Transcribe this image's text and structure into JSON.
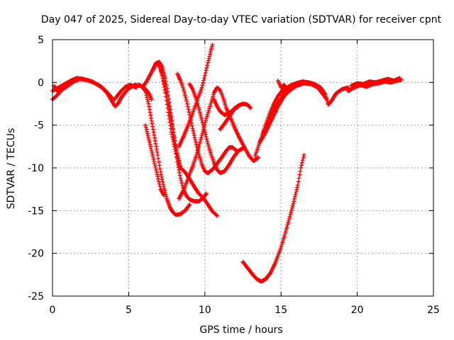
{
  "chart_data": {
    "type": "scatter",
    "title": "Day 047 of 2025, Sidereal Day-to-day VTEC variation (SDTVAR) for receiver cpnt",
    "xlabel": "GPS time / hours",
    "ylabel": "SDTVAR / TECUs",
    "xlim": [
      0,
      25
    ],
    "ylim": [
      -25,
      5
    ],
    "xticks": [
      "0",
      "5",
      "10",
      "15",
      "20",
      "25"
    ],
    "yticks": [
      "5",
      "0",
      "-5",
      "-10",
      "-15",
      "-20",
      "-25"
    ],
    "grid": true,
    "marker": "+",
    "color": "#ff0000",
    "series": [
      {
        "points": [
          [
            0,
            -2.0
          ],
          [
            0.3,
            -1.5
          ],
          [
            0.6,
            -0.9
          ],
          [
            1.0,
            -0.4
          ],
          [
            1.4,
            0.1
          ],
          [
            1.8,
            0.4
          ],
          [
            2.2,
            0.3
          ],
          [
            2.6,
            0.1
          ],
          [
            3.0,
            -0.3
          ],
          [
            3.3,
            -0.7
          ],
          [
            3.6,
            -1.3
          ],
          [
            3.9,
            -2.2
          ],
          [
            4.1,
            -2.8
          ],
          [
            4.3,
            -2.5
          ],
          [
            4.5,
            -1.8
          ],
          [
            4.8,
            -1.1
          ],
          [
            5.1,
            -0.6
          ],
          [
            5.4,
            -0.3
          ],
          [
            5.8,
            -0.4
          ]
        ]
      },
      {
        "points": [
          [
            0,
            -1.0
          ],
          [
            0.4,
            -0.6
          ],
          [
            0.8,
            -0.2
          ],
          [
            1.2,
            0.2
          ],
          [
            1.6,
            0.5
          ],
          [
            2.0,
            0.4
          ],
          [
            2.4,
            0.2
          ],
          [
            2.8,
            -0.1
          ],
          [
            3.2,
            -0.5
          ],
          [
            3.5,
            -1.0
          ],
          [
            3.8,
            -1.6
          ],
          [
            4.0,
            -2.1
          ],
          [
            4.2,
            -1.7
          ],
          [
            4.5,
            -1.0
          ],
          [
            4.8,
            -0.5
          ],
          [
            5.1,
            -0.3
          ],
          [
            5.5,
            -0.6
          ]
        ]
      },
      {
        "points": [
          [
            0.1,
            -0.4
          ],
          [
            0.3,
            -1.0
          ],
          [
            0.5,
            -0.7
          ],
          [
            0.8,
            -0.5
          ]
        ]
      },
      {
        "points": [
          [
            5.4,
            -0.5
          ],
          [
            5.7,
            -0.3
          ],
          [
            6.0,
            -0.6
          ],
          [
            6.3,
            -1.2
          ],
          [
            6.5,
            -2.0
          ]
        ]
      },
      {
        "points": [
          [
            6.1,
            -5.0
          ],
          [
            6.3,
            -6.5
          ],
          [
            6.5,
            -8.0
          ],
          [
            6.7,
            -9.5
          ],
          [
            6.9,
            -11.0
          ],
          [
            7.1,
            -12.5
          ],
          [
            7.3,
            -13.2
          ]
        ]
      },
      {
        "points": [
          [
            5.9,
            -0.6
          ],
          [
            6.1,
            -1.0
          ],
          [
            6.3,
            -2.5
          ],
          [
            6.5,
            -4.5
          ],
          [
            6.7,
            -6.5
          ],
          [
            6.9,
            -8.5
          ],
          [
            7.1,
            -10.5
          ],
          [
            7.3,
            -12.2
          ],
          [
            7.5,
            -13.6
          ],
          [
            7.7,
            -14.6
          ],
          [
            7.9,
            -15.2
          ],
          [
            8.1,
            -15.5
          ],
          [
            8.4,
            -15.4
          ],
          [
            8.7,
            -15.0
          ],
          [
            9.0,
            -14.3
          ]
        ]
      },
      {
        "points": [
          [
            5.9,
            -0.6
          ],
          [
            6.2,
            0.2
          ],
          [
            6.5,
            1.2
          ],
          [
            6.8,
            2.2
          ],
          [
            7.0,
            2.4
          ],
          [
            7.2,
            1.8
          ],
          [
            7.4,
            0.5
          ],
          [
            7.6,
            -1.5
          ],
          [
            7.8,
            -4.0
          ],
          [
            8.0,
            -6.8
          ],
          [
            8.2,
            -9.3
          ],
          [
            8.4,
            -11.2
          ],
          [
            8.6,
            -12.6
          ],
          [
            8.8,
            -13.3
          ],
          [
            9.0,
            -13.7
          ],
          [
            9.3,
            -13.9
          ],
          [
            9.6,
            -13.9
          ],
          [
            9.9,
            -13.5
          ],
          [
            10.1,
            -13.0
          ]
        ]
      },
      {
        "points": [
          [
            6.6,
            1.5
          ],
          [
            6.8,
            2.3
          ],
          [
            7.0,
            2.1
          ],
          [
            7.2,
            0.8
          ],
          [
            7.4,
            -1.2
          ],
          [
            7.6,
            -3.5
          ],
          [
            7.8,
            -5.8
          ],
          [
            8.0,
            -7.5
          ],
          [
            8.2,
            -9.0
          ],
          [
            8.4,
            -10.0
          ],
          [
            8.7,
            -10.5
          ],
          [
            9.0,
            -11.3
          ],
          [
            9.3,
            -12.2
          ],
          [
            9.6,
            -13.0
          ],
          [
            9.9,
            -13.5
          ],
          [
            10.2,
            -14.3
          ],
          [
            10.5,
            -15.1
          ],
          [
            10.8,
            -15.6
          ]
        ]
      },
      {
        "points": [
          [
            7.0,
            2.0
          ],
          [
            7.2,
            1.0
          ],
          [
            7.4,
            -0.5
          ],
          [
            7.6,
            -2.5
          ],
          [
            7.8,
            -4.5
          ],
          [
            8.0,
            -6.5
          ],
          [
            8.2,
            -8.3
          ],
          [
            8.4,
            -10.0
          ]
        ]
      },
      {
        "points": [
          [
            8.3,
            -13.6
          ],
          [
            8.6,
            -12.6
          ],
          [
            8.9,
            -11.2
          ],
          [
            9.2,
            -9.8
          ],
          [
            9.5,
            -8.2
          ],
          [
            9.8,
            -6.2
          ],
          [
            10.1,
            -4.2
          ],
          [
            10.4,
            -2.4
          ],
          [
            10.6,
            -1.2
          ],
          [
            10.8,
            -0.6
          ],
          [
            11.0,
            -0.9
          ],
          [
            11.2,
            -1.8
          ],
          [
            11.4,
            -3.0
          ],
          [
            11.7,
            -4.2
          ],
          [
            12.0,
            -5.5
          ],
          [
            12.3,
            -6.6
          ],
          [
            12.6,
            -7.6
          ],
          [
            12.9,
            -8.6
          ],
          [
            13.2,
            -9.2
          ],
          [
            13.5,
            -8.8
          ]
        ]
      },
      {
        "points": [
          [
            8.3,
            -7.5
          ],
          [
            8.6,
            -6.3
          ],
          [
            8.9,
            -5.0
          ],
          [
            9.2,
            -3.6
          ],
          [
            9.5,
            -2.1
          ],
          [
            9.8,
            -0.6
          ],
          [
            10.0,
            0.8
          ],
          [
            10.2,
            2.3
          ],
          [
            10.4,
            3.8
          ],
          [
            10.5,
            4.4
          ]
        ]
      },
      {
        "points": [
          [
            8.2,
            1.0
          ],
          [
            8.4,
            0.2
          ],
          [
            8.6,
            -0.8
          ],
          [
            8.8,
            -2.2
          ],
          [
            9.0,
            -3.8
          ],
          [
            9.2,
            -5.4
          ],
          [
            9.4,
            -7.0
          ],
          [
            9.6,
            -8.4
          ],
          [
            9.8,
            -9.6
          ],
          [
            10.0,
            -10.4
          ],
          [
            10.2,
            -10.6
          ],
          [
            10.5,
            -10.2
          ],
          [
            10.8,
            -9.5
          ],
          [
            11.1,
            -8.8
          ],
          [
            11.4,
            -8.0
          ],
          [
            11.6,
            -7.6
          ],
          [
            11.8,
            -7.6
          ],
          [
            12.1,
            -8.0
          ]
        ]
      },
      {
        "points": [
          [
            9.0,
            -0.2
          ],
          [
            9.2,
            -0.8
          ],
          [
            9.4,
            -1.8
          ],
          [
            9.6,
            -3.0
          ],
          [
            9.8,
            -4.4
          ],
          [
            10.0,
            -5.8
          ],
          [
            10.2,
            -7.2
          ],
          [
            10.4,
            -8.4
          ],
          [
            10.6,
            -9.4
          ],
          [
            10.8,
            -10.2
          ],
          [
            11.0,
            -10.6
          ],
          [
            11.3,
            -10.4
          ],
          [
            11.6,
            -9.6
          ],
          [
            11.9,
            -8.7
          ],
          [
            12.2,
            -8.0
          ],
          [
            12.5,
            -7.7
          ]
        ]
      },
      {
        "points": [
          [
            10.6,
            -2.0
          ],
          [
            10.8,
            -2.8
          ],
          [
            11.0,
            -3.4
          ],
          [
            11.3,
            -3.8
          ],
          [
            11.6,
            -3.6
          ],
          [
            11.9,
            -3.1
          ],
          [
            12.2,
            -2.7
          ],
          [
            12.5,
            -2.5
          ],
          [
            12.8,
            -2.6
          ],
          [
            13.0,
            -3.0
          ]
        ]
      },
      {
        "points": [
          [
            11.0,
            -5.5
          ],
          [
            11.3,
            -4.8
          ],
          [
            11.6,
            -4.0
          ],
          [
            11.9,
            -3.2
          ],
          [
            12.2,
            -2.8
          ]
        ]
      },
      {
        "points": [
          [
            12.5,
            -21.0
          ],
          [
            12.8,
            -21.7
          ],
          [
            13.1,
            -22.4
          ],
          [
            13.4,
            -23.0
          ],
          [
            13.7,
            -23.3
          ],
          [
            14.0,
            -23.0
          ],
          [
            14.3,
            -22.3
          ],
          [
            14.6,
            -21.2
          ],
          [
            14.9,
            -19.8
          ],
          [
            15.2,
            -18.1
          ],
          [
            15.5,
            -16.2
          ],
          [
            15.8,
            -14.2
          ],
          [
            16.1,
            -12.0
          ],
          [
            16.3,
            -10.0
          ],
          [
            16.5,
            -8.5
          ]
        ]
      },
      {
        "points": [
          [
            13.3,
            -8.6
          ],
          [
            13.6,
            -7.0
          ],
          [
            13.9,
            -5.4
          ],
          [
            14.2,
            -3.9
          ],
          [
            14.5,
            -2.6
          ],
          [
            14.8,
            -1.6
          ],
          [
            15.1,
            -0.9
          ],
          [
            15.4,
            -0.6
          ],
          [
            15.7,
            -0.3
          ],
          [
            16.0,
            -0.1
          ],
          [
            16.4,
            0.1
          ],
          [
            16.8,
            0.0
          ],
          [
            17.2,
            -0.2
          ],
          [
            17.6,
            -0.6
          ],
          [
            17.9,
            -1.4
          ],
          [
            18.1,
            -2.6
          ],
          [
            18.3,
            -2.2
          ],
          [
            18.6,
            -1.3
          ],
          [
            19.0,
            -0.8
          ],
          [
            19.4,
            -0.6
          ]
        ]
      },
      {
        "points": [
          [
            13.6,
            -7.0
          ],
          [
            14.0,
            -5.8
          ],
          [
            14.4,
            -4.3
          ],
          [
            14.8,
            -2.8
          ],
          [
            15.2,
            -1.6
          ],
          [
            15.6,
            -0.9
          ],
          [
            16.0,
            -0.4
          ],
          [
            16.5,
            -0.1
          ],
          [
            17.0,
            -0.2
          ],
          [
            17.4,
            -0.6
          ],
          [
            17.8,
            -1.5
          ],
          [
            18.0,
            -2.0
          ]
        ]
      },
      {
        "points": [
          [
            13.8,
            -6.0
          ],
          [
            14.2,
            -4.5
          ],
          [
            14.6,
            -3.0
          ],
          [
            15.0,
            -1.9
          ],
          [
            15.3,
            -0.9
          ],
          [
            15.5,
            -0.5
          ]
        ]
      },
      {
        "points": [
          [
            14.8,
            0.2
          ],
          [
            15.0,
            -0.6
          ],
          [
            15.2,
            -0.3
          ],
          [
            15.5,
            -0.9
          ]
        ]
      },
      {
        "points": [
          [
            19.4,
            -1.0
          ],
          [
            19.8,
            -0.6
          ],
          [
            20.2,
            -0.3
          ],
          [
            20.6,
            -0.5
          ],
          [
            21.0,
            -0.2
          ],
          [
            21.4,
            -0.1
          ],
          [
            21.8,
            0.1
          ],
          [
            22.2,
            0.0
          ],
          [
            22.6,
            0.2
          ],
          [
            22.9,
            0.3
          ]
        ]
      },
      {
        "points": [
          [
            19.6,
            -0.4
          ],
          [
            20.0,
            -0.1
          ],
          [
            20.4,
            -0.2
          ],
          [
            20.8,
            0.1
          ],
          [
            21.2,
            0.0
          ],
          [
            21.6,
            0.2
          ],
          [
            22.0,
            0.4
          ],
          [
            22.4,
            0.2
          ],
          [
            22.8,
            0.5
          ]
        ]
      }
    ]
  }
}
